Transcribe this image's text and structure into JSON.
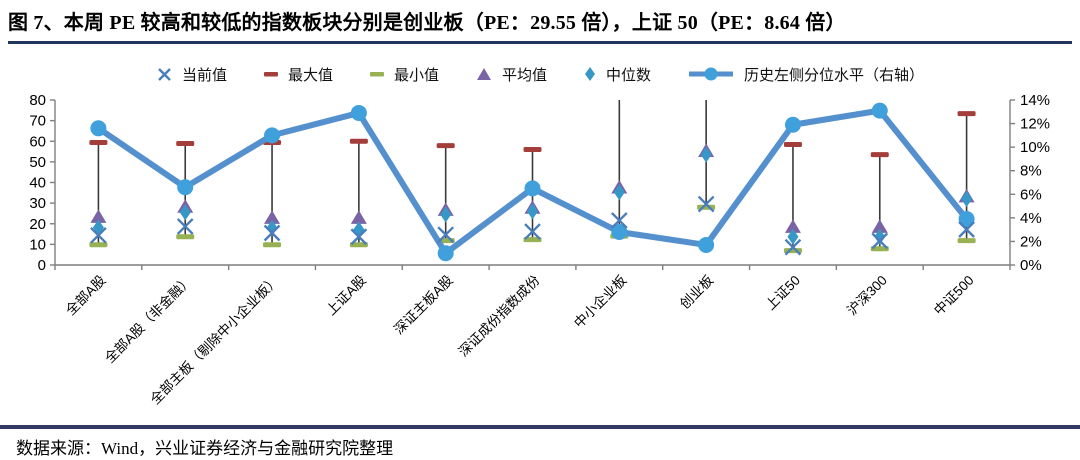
{
  "title": "图 7、本周 PE 较高和较低的指数板块分别是创业板（PE：29.55 倍），上证 50（PE：8.64 倍）",
  "source_note": "数据来源：Wind，兴业证券经济与金融研究院整理",
  "colors": {
    "title_rule": "#22355C",
    "bottom_rule": "#343A63",
    "axis": "#7F7F7F",
    "hilo_line": "#3A3A3A",
    "tick_text": "#000000"
  },
  "chart_data": {
    "type": "line",
    "title": "本周 PE 较高和较低的指数板块分别是创业板（PE：29.55 倍），上证 50（PE：8.64 倍）",
    "categories": [
      "全部A股",
      "全部A股（非金融）",
      "全部主板（剔除中小企业板）",
      "上证A股",
      "深证主板A股",
      "深证成份指数成份",
      "中小企业板",
      "创业板",
      "上证50",
      "沪深300",
      "中证500"
    ],
    "left_axis": {
      "min": 0,
      "max": 80,
      "tick_step": 10,
      "tick_labels": [
        "0",
        "10",
        "20",
        "30",
        "40",
        "50",
        "60",
        "70",
        "80"
      ]
    },
    "right_axis": {
      "min": 0,
      "max": 14,
      "tick_step": 2,
      "unit": "%",
      "tick_labels": [
        "0%",
        "2%",
        "4%",
        "6%",
        "8%",
        "10%",
        "12%",
        "14%"
      ]
    },
    "grid": false,
    "legend_position": "top",
    "series": [
      {
        "name": "当前值",
        "marker": "x",
        "axis": "left",
        "color": "#4A7EBB",
        "values": [
          14.4,
          18.7,
          15.5,
          13.7,
          14.7,
          16.2,
          21.6,
          29.55,
          8.64,
          11.7,
          17.2
        ]
      },
      {
        "name": "最大值",
        "marker": "dash",
        "axis": "left",
        "color": "#A43E3B",
        "values": [
          59.4,
          58.9,
          59.4,
          60.0,
          57.9,
          56.0,
          null,
          null,
          58.4,
          53.5,
          73.4
        ],
        "clipped_above_axis": [
          false,
          false,
          false,
          false,
          false,
          false,
          true,
          true,
          false,
          false,
          false
        ]
      },
      {
        "name": "最小值",
        "marker": "dash",
        "axis": "left",
        "color": "#97B153",
        "values": [
          9.8,
          13.7,
          9.8,
          9.8,
          11.8,
          12.3,
          14.0,
          28.0,
          7.0,
          7.9,
          11.8
        ]
      },
      {
        "name": "平均值",
        "marker": "triangle",
        "axis": "left",
        "color": "#7B64A5",
        "values": [
          23.6,
          28.5,
          23.1,
          23.1,
          27.0,
          28.0,
          37.8,
          55.5,
          18.7,
          18.7,
          33.5
        ]
      },
      {
        "name": "中位数",
        "marker": "diamond",
        "axis": "left",
        "color": "#3798C8",
        "values": [
          18.2,
          25.5,
          18.0,
          17.2,
          24.5,
          26.0,
          35.3,
          53.5,
          13.7,
          13.7,
          32.0
        ]
      },
      {
        "name": "历史左侧分位水平（右轴）",
        "marker": "circle-line",
        "axis": "right",
        "color": "#5590CE",
        "marker_color": "#3FA0DC",
        "values": [
          11.6,
          6.6,
          11.0,
          12.9,
          1.0,
          6.5,
          2.8,
          1.7,
          11.9,
          13.1,
          3.9
        ]
      }
    ]
  }
}
